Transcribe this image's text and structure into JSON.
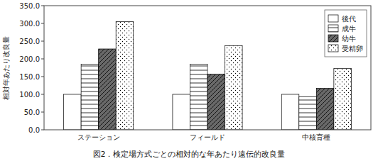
{
  "chart_data": {
    "type": "bar",
    "title": "図2．検定場方式ごとの相対的な年あたり遠伝的改良量",
    "ylabel": "相対年あたり改良量",
    "categories": [
      "ステーション",
      "フィールド",
      "中核育種"
    ],
    "series": [
      {
        "name": "後代",
        "color": "white",
        "values": [
          100.0,
          100.0,
          100.0
        ]
      },
      {
        "name": "成牛",
        "color": "white",
        "values": [
          185.0,
          185.0,
          93.0
        ]
      },
      {
        "name": "幼牛",
        "color": "dimgray",
        "values": [
          228.0,
          157.0,
          117.0
        ]
      },
      {
        "name": "受精卵",
        "color": "white",
        "values": [
          305.0,
          237.0,
          173.0
        ]
      }
    ],
    "ylim": [
      0,
      350
    ],
    "yticks": [
      {
        "value": 0,
        "label": "0.0"
      },
      {
        "value": 50,
        "label": "50.0"
      },
      {
        "value": 100,
        "label": "100.0"
      },
      {
        "value": 150,
        "label": "150.0"
      },
      {
        "value": 200,
        "label": "200.0"
      },
      {
        "value": 250,
        "label": "250.0"
      },
      {
        "value": 300,
        "label": "300.0"
      },
      {
        "value": 350,
        "label": "350.0"
      }
    ],
    "legend": "upper right",
    "grid": false
  }
}
